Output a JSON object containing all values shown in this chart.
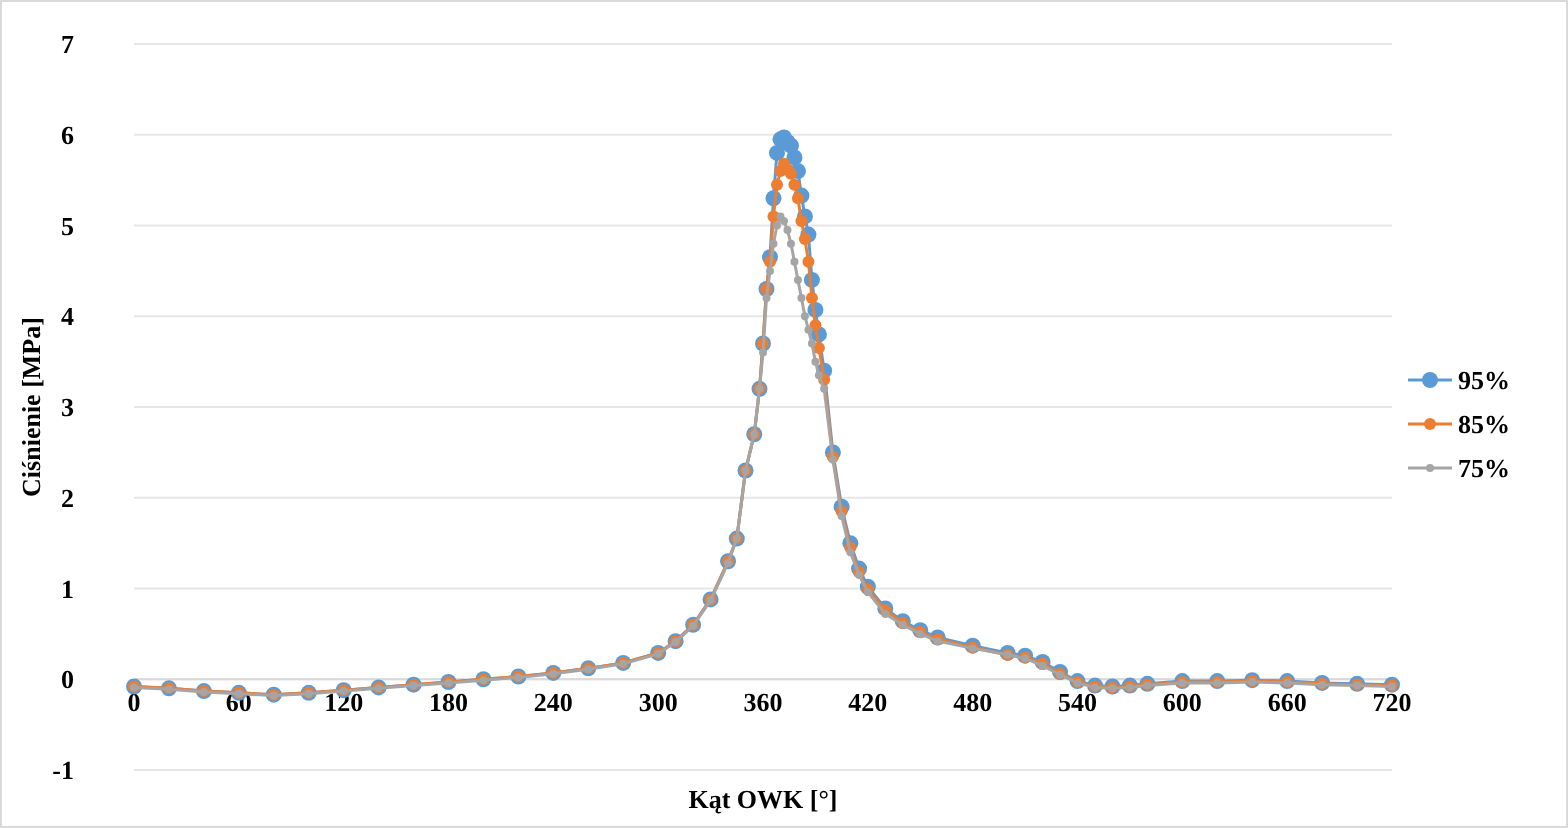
{
  "chart_data": {
    "type": "line",
    "xlabel": "Kąt OWK [°]",
    "ylabel": "Ciśnienie [MPa]",
    "x": [
      0,
      20,
      40,
      60,
      80,
      100,
      120,
      140,
      160,
      180,
      200,
      220,
      240,
      260,
      280,
      300,
      310,
      320,
      330,
      340,
      345,
      350,
      355,
      358,
      360,
      362,
      364,
      366,
      368,
      370,
      372,
      374,
      376,
      378,
      380,
      382,
      384,
      386,
      388,
      390,
      392,
      395,
      400,
      405,
      410,
      415,
      420,
      430,
      440,
      450,
      460,
      480,
      500,
      510,
      520,
      530,
      540,
      550,
      560,
      570,
      580,
      600,
      620,
      640,
      660,
      680,
      700,
      720
    ],
    "series": [
      {
        "name": "95%",
        "color": "#5b9bd5",
        "values": [
          -0.08,
          -0.1,
          -0.13,
          -0.15,
          -0.17,
          -0.15,
          -0.12,
          -0.09,
          -0.06,
          -0.03,
          0.0,
          0.03,
          0.07,
          0.12,
          0.18,
          0.29,
          0.42,
          0.6,
          0.88,
          1.3,
          1.55,
          2.3,
          2.7,
          3.2,
          3.7,
          4.3,
          4.65,
          5.3,
          5.8,
          5.95,
          5.97,
          5.92,
          5.88,
          5.75,
          5.6,
          5.33,
          5.1,
          4.9,
          4.4,
          4.07,
          3.8,
          3.4,
          2.5,
          1.9,
          1.5,
          1.22,
          1.02,
          0.78,
          0.64,
          0.54,
          0.46,
          0.37,
          0.29,
          0.26,
          0.19,
          0.08,
          -0.02,
          -0.07,
          -0.08,
          -0.07,
          -0.05,
          -0.02,
          -0.02,
          -0.01,
          -0.02,
          -0.04,
          -0.05,
          -0.06
        ]
      },
      {
        "name": "85%",
        "color": "#ed7d31",
        "values": [
          -0.08,
          -0.1,
          -0.13,
          -0.15,
          -0.17,
          -0.15,
          -0.12,
          -0.09,
          -0.06,
          -0.03,
          0.0,
          0.03,
          0.07,
          0.12,
          0.18,
          0.29,
          0.42,
          0.6,
          0.88,
          1.3,
          1.55,
          2.3,
          2.7,
          3.2,
          3.7,
          4.3,
          4.6,
          5.1,
          5.45,
          5.6,
          5.68,
          5.62,
          5.57,
          5.45,
          5.3,
          5.05,
          4.85,
          4.6,
          4.2,
          3.9,
          3.65,
          3.3,
          2.45,
          1.85,
          1.45,
          1.18,
          0.99,
          0.76,
          0.62,
          0.52,
          0.44,
          0.35,
          0.27,
          0.24,
          0.17,
          0.06,
          -0.03,
          -0.08,
          -0.09,
          -0.08,
          -0.06,
          -0.03,
          -0.03,
          -0.02,
          -0.03,
          -0.05,
          -0.06,
          -0.07
        ]
      },
      {
        "name": "75%",
        "color": "#a5a5a5",
        "values": [
          -0.09,
          -0.11,
          -0.14,
          -0.16,
          -0.18,
          -0.16,
          -0.13,
          -0.1,
          -0.07,
          -0.04,
          -0.01,
          0.02,
          0.06,
          0.11,
          0.17,
          0.28,
          0.41,
          0.59,
          0.87,
          1.28,
          1.55,
          2.3,
          2.7,
          3.2,
          3.6,
          4.2,
          4.5,
          4.8,
          5.0,
          5.1,
          5.05,
          4.95,
          4.8,
          4.6,
          4.4,
          4.2,
          4.0,
          3.85,
          3.7,
          3.5,
          3.35,
          3.2,
          2.42,
          1.8,
          1.4,
          1.15,
          0.96,
          0.72,
          0.6,
          0.5,
          0.42,
          0.34,
          0.27,
          0.23,
          0.15,
          0.05,
          -0.04,
          -0.09,
          -0.1,
          -0.09,
          -0.07,
          -0.04,
          -0.04,
          -0.03,
          -0.04,
          -0.06,
          -0.07,
          -0.08
        ]
      }
    ],
    "xlim": [
      0,
      720
    ],
    "xticks": [
      0,
      60,
      120,
      180,
      240,
      300,
      360,
      420,
      480,
      540,
      600,
      660,
      720
    ],
    "ylim": [
      -1,
      7
    ],
    "yticks": [
      -1,
      0,
      1,
      2,
      3,
      4,
      5,
      6,
      7
    ],
    "grid": "y",
    "legend": "right",
    "marker": "circle",
    "line_style": "solid"
  }
}
